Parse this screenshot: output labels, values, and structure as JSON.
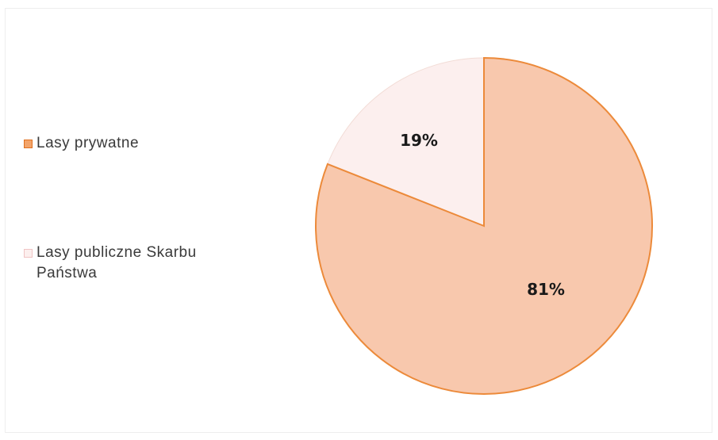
{
  "chart_data": {
    "type": "pie",
    "title": "",
    "categories": [
      "Lasy prywatne",
      "Lasy publiczne Skarbu Państwa"
    ],
    "values": [
      19,
      81
    ],
    "value_labels": [
      "19%",
      "81%"
    ],
    "colors": {
      "slice_fills": [
        "#fcefee",
        "#f8c8ad"
      ],
      "slice_strokes": [
        "#f2dcd6",
        "#ec8a3a"
      ],
      "legend_swatch_fills": [
        "#f3a46a",
        "#fcefee"
      ],
      "legend_swatch_strokes": [
        "#e0701f",
        "#f0c4c4"
      ]
    },
    "legend_position": "left",
    "start_angle_deg": 0,
    "direction": "counterclockwise"
  }
}
